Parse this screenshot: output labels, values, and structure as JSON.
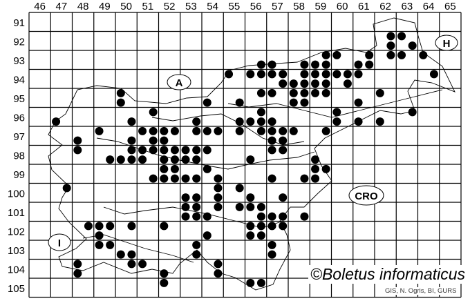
{
  "map": {
    "columns": [
      "46",
      "47",
      "48",
      "49",
      "50",
      "51",
      "52",
      "53",
      "54",
      "55",
      "56",
      "57",
      "58",
      "59",
      "60",
      "61",
      "62",
      "63",
      "64",
      "65"
    ],
    "rows": [
      "91",
      "92",
      "93",
      "94",
      "95",
      "96",
      "97",
      "98",
      "99",
      "100",
      "101",
      "102",
      "103",
      "104",
      "105"
    ],
    "country_labels": {
      "austria": "A",
      "hungary": "H",
      "croatia": "CRO",
      "italy": "I"
    },
    "copyright": "©Boletus informaticus",
    "credit": "GIS, N. Ogris, BI, GURS",
    "dot_color": "#000000",
    "records": [
      [
        62.75,
        92.25
      ],
      [
        63.25,
        92.25
      ],
      [
        62.75,
        92.75
      ],
      [
        63.75,
        92.75
      ],
      [
        62.75,
        93.25
      ],
      [
        63.25,
        93.25
      ],
      [
        64.25,
        93.25
      ],
      [
        59.75,
        93.25
      ],
      [
        60.25,
        93.25
      ],
      [
        61.75,
        93.25
      ],
      [
        56.75,
        93.75
      ],
      [
        57.25,
        93.75
      ],
      [
        58.75,
        93.75
      ],
      [
        59.25,
        93.75
      ],
      [
        59.75,
        93.75
      ],
      [
        61.25,
        93.75
      ],
      [
        61.75,
        93.75
      ],
      [
        55.25,
        94.25
      ],
      [
        56.25,
        94.25
      ],
      [
        56.75,
        94.25
      ],
      [
        57.25,
        94.25
      ],
      [
        57.75,
        94.25
      ],
      [
        58.75,
        94.25
      ],
      [
        59.25,
        94.25
      ],
      [
        59.75,
        94.25
      ],
      [
        60.25,
        94.25
      ],
      [
        60.75,
        94.25
      ],
      [
        61.25,
        94.25
      ],
      [
        64.75,
        94.25
      ],
      [
        57.75,
        94.75
      ],
      [
        58.25,
        94.75
      ],
      [
        58.75,
        94.75
      ],
      [
        59.25,
        94.75
      ],
      [
        59.75,
        94.75
      ],
      [
        60.75,
        94.75
      ],
      [
        50.25,
        95.25
      ],
      [
        56.75,
        95.25
      ],
      [
        57.25,
        95.25
      ],
      [
        58.25,
        95.25
      ],
      [
        58.75,
        95.25
      ],
      [
        59.25,
        95.25
      ],
      [
        59.75,
        95.25
      ],
      [
        62.25,
        95.25
      ],
      [
        50.25,
        95.75
      ],
      [
        54.25,
        95.75
      ],
      [
        55.75,
        95.75
      ],
      [
        58.25,
        95.75
      ],
      [
        58.75,
        95.75
      ],
      [
        61.25,
        95.75
      ],
      [
        51.75,
        96.25
      ],
      [
        56.75,
        96.25
      ],
      [
        60.25,
        96.25
      ],
      [
        63.75,
        96.25
      ],
      [
        47.25,
        96.75
      ],
      [
        50.75,
        96.75
      ],
      [
        53.75,
        96.75
      ],
      [
        55.75,
        96.75
      ],
      [
        56.25,
        96.75
      ],
      [
        56.75,
        96.75
      ],
      [
        57.25,
        96.75
      ],
      [
        60.25,
        96.75
      ],
      [
        61.25,
        96.75
      ],
      [
        62.25,
        96.75
      ],
      [
        49.25,
        97.25
      ],
      [
        51.25,
        97.25
      ],
      [
        51.75,
        97.25
      ],
      [
        52.25,
        97.25
      ],
      [
        52.75,
        97.25
      ],
      [
        53.75,
        97.25
      ],
      [
        54.25,
        97.25
      ],
      [
        54.75,
        97.25
      ],
      [
        55.75,
        97.25
      ],
      [
        56.75,
        97.25
      ],
      [
        57.25,
        97.25
      ],
      [
        57.75,
        97.25
      ],
      [
        58.25,
        97.25
      ],
      [
        59.75,
        97.25
      ],
      [
        48.25,
        97.75
      ],
      [
        50.75,
        97.75
      ],
      [
        51.75,
        97.75
      ],
      [
        52.25,
        97.75
      ],
      [
        57.25,
        97.75
      ],
      [
        57.75,
        97.75
      ],
      [
        48.25,
        98.25
      ],
      [
        50.75,
        98.25
      ],
      [
        51.25,
        98.25
      ],
      [
        51.75,
        98.25
      ],
      [
        52.25,
        98.25
      ],
      [
        52.75,
        98.25
      ],
      [
        53.25,
        98.25
      ],
      [
        53.75,
        98.25
      ],
      [
        54.25,
        98.25
      ],
      [
        57.25,
        98.25
      ],
      [
        57.75,
        98.25
      ],
      [
        49.75,
        98.75
      ],
      [
        50.25,
        98.75
      ],
      [
        50.75,
        98.75
      ],
      [
        51.25,
        98.75
      ],
      [
        52.25,
        98.75
      ],
      [
        52.75,
        98.75
      ],
      [
        53.25,
        98.75
      ],
      [
        53.75,
        98.75
      ],
      [
        56.25,
        98.75
      ],
      [
        59.25,
        98.75
      ],
      [
        52.25,
        99.25
      ],
      [
        52.75,
        99.25
      ],
      [
        54.25,
        99.25
      ],
      [
        59.25,
        99.25
      ],
      [
        59.75,
        99.25
      ],
      [
        51.75,
        99.75
      ],
      [
        52.25,
        99.75
      ],
      [
        52.75,
        99.75
      ],
      [
        53.25,
        99.75
      ],
      [
        53.75,
        99.75
      ],
      [
        54.75,
        99.75
      ],
      [
        57.25,
        99.75
      ],
      [
        58.75,
        99.75
      ],
      [
        59.25,
        99.75
      ],
      [
        47.75,
        100.25
      ],
      [
        54.75,
        100.25
      ],
      [
        55.75,
        100.25
      ],
      [
        53.25,
        100.75
      ],
      [
        53.75,
        100.75
      ],
      [
        54.75,
        100.75
      ],
      [
        56.25,
        100.75
      ],
      [
        57.75,
        100.75
      ],
      [
        53.25,
        101.25
      ],
      [
        53.75,
        101.25
      ],
      [
        54.75,
        101.25
      ],
      [
        55.75,
        101.25
      ],
      [
        56.25,
        101.25
      ],
      [
        56.75,
        101.25
      ],
      [
        53.25,
        101.75
      ],
      [
        53.75,
        101.75
      ],
      [
        54.25,
        101.75
      ],
      [
        56.75,
        101.75
      ],
      [
        57.25,
        101.75
      ],
      [
        57.75,
        101.75
      ],
      [
        58.75,
        101.75
      ],
      [
        48.75,
        102.25
      ],
      [
        49.25,
        102.25
      ],
      [
        49.75,
        102.25
      ],
      [
        50.75,
        102.25
      ],
      [
        52.25,
        102.25
      ],
      [
        56.25,
        102.25
      ],
      [
        56.75,
        102.25
      ],
      [
        57.25,
        102.25
      ],
      [
        57.75,
        102.25
      ],
      [
        49.25,
        102.75
      ],
      [
        54.25,
        102.75
      ],
      [
        56.25,
        102.75
      ],
      [
        56.75,
        102.75
      ],
      [
        49.25,
        103.25
      ],
      [
        49.75,
        103.25
      ],
      [
        53.75,
        103.25
      ],
      [
        57.25,
        103.25
      ],
      [
        50.25,
        103.75
      ],
      [
        50.75,
        103.75
      ],
      [
        53.75,
        103.75
      ],
      [
        57.25,
        103.75
      ],
      [
        48.25,
        104.25
      ],
      [
        50.75,
        104.25
      ],
      [
        51.25,
        104.25
      ],
      [
        54.75,
        104.25
      ],
      [
        48.25,
        104.75
      ],
      [
        52.25,
        104.75
      ],
      [
        54.75,
        104.75
      ],
      [
        52.25,
        105.25
      ],
      [
        56.25,
        105.25
      ],
      [
        56.75,
        105.25
      ]
    ]
  }
}
